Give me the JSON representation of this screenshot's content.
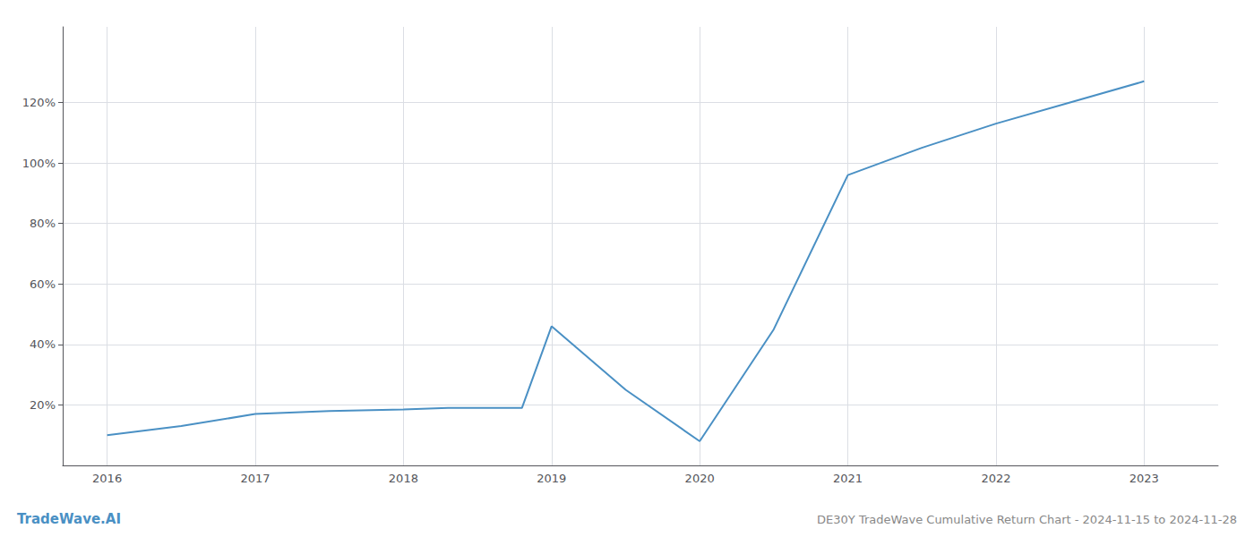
{
  "chart_data": {
    "type": "line",
    "title": "DE30Y TradeWave Cumulative Return Chart - 2024-11-15 to 2024-11-28",
    "annotations": [
      "TradeWave.AI"
    ],
    "x": [
      2016,
      2016.5,
      2017,
      2017.5,
      2018,
      2018.3,
      2018.8,
      2019,
      2019.5,
      2020,
      2020.5,
      2021,
      2021.5,
      2022,
      2022.5,
      2023
    ],
    "values": [
      10,
      13,
      17,
      18,
      18.5,
      19,
      19,
      46,
      25,
      8,
      45,
      96,
      105,
      113,
      120,
      127
    ],
    "color": "#4a90c4",
    "xlim": [
      2015.7,
      2023.5
    ],
    "xticks": [
      2016,
      2017,
      2018,
      2019,
      2020,
      2021,
      2022,
      2023
    ],
    "ylim": [
      0,
      145
    ],
    "yticks": [
      {
        "value": 20,
        "label": "20%"
      },
      {
        "value": 40,
        "label": "40%"
      },
      {
        "value": 60,
        "label": "60%"
      },
      {
        "value": 80,
        "label": "80%"
      },
      {
        "value": 100,
        "label": "100%"
      },
      {
        "value": 120,
        "label": "120%"
      }
    ],
    "grid": true
  }
}
